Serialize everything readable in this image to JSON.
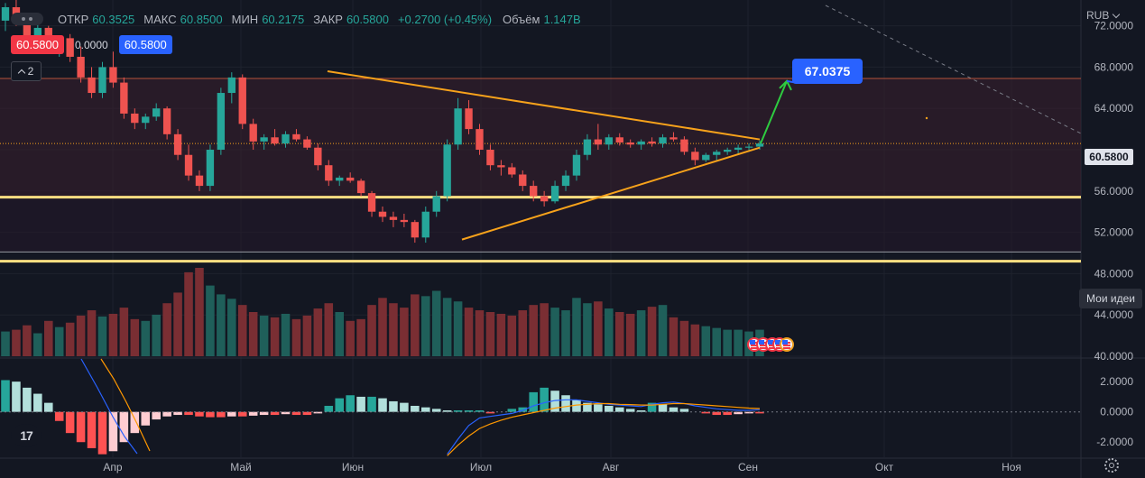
{
  "header": {
    "open_label": "ОТКР",
    "open_value": "60.3525",
    "high_label": "МАКС",
    "high_value": "60.8500",
    "low_label": "МИН",
    "low_value": "60.2175",
    "close_label": "ЗАКР",
    "close_value": "60.5800",
    "change": "+0.2700 (+0.45%)",
    "volume_label": "Объём",
    "volume_value": "1.147B"
  },
  "quote": {
    "sell": "60.5800",
    "spread": "0.0000",
    "buy": "60.5800"
  },
  "indicators_toggle": {
    "count": "2"
  },
  "currency": "RUB",
  "ideas_button": "Мои идеи",
  "target_label": "67.0375",
  "last_price_tag": "60.5800",
  "logo_text": "17",
  "colors": {
    "up": "#26a69a",
    "down": "#ef5350",
    "accent": "#2962ff",
    "triangle": "#f7a21b",
    "level_line": "#ffe082",
    "arrow": "#2ecc40"
  },
  "icons": {
    "logo": "tradingview-logo-icon",
    "settings": "gear-icon",
    "events": "us-flag-event-icon"
  },
  "chart_data": {
    "type": "candlestick",
    "price_axis_ticks": [
      "72.0000",
      "68.0000",
      "64.0000",
      "60.0000",
      "56.0000",
      "52.0000",
      "48.0000",
      "44.0000",
      "40.0000"
    ],
    "macd_axis_ticks": [
      "2.0000",
      "0.0000",
      "-2.0000"
    ],
    "time_axis_ticks": [
      "Апр",
      "Май",
      "Июн",
      "Июл",
      "Авг",
      "Сен",
      "Окт",
      "Ноя"
    ],
    "price_range": [
      40,
      74.5
    ],
    "macd_range": [
      -3,
      3.5
    ],
    "levels": [
      {
        "price": 66.9,
        "style": "zone-top"
      },
      {
        "price": 55.4,
        "style": "horizontal-line"
      },
      {
        "price": 50.1,
        "style": "zone-bottom"
      },
      {
        "price": 49.2,
        "style": "horizontal-line"
      }
    ],
    "triangle": {
      "upper": [
        [
          0.125,
          67.6
        ],
        [
          0.52,
          61.0
        ]
      ],
      "lower": [
        [
          0.13,
          51.3
        ],
        [
          0.52,
          60.2
        ]
      ]
    },
    "target": {
      "start": [
        0.52,
        60.6
      ],
      "end": [
        0.54,
        67.0
      ]
    },
    "candles": [
      [
        72.5,
        74.2,
        71.5,
        73.8
      ],
      [
        73.8,
        74.5,
        72.0,
        72.3
      ],
      [
        72.3,
        73.0,
        70.5,
        71.0
      ],
      [
        71.0,
        72.2,
        70.0,
        71.8
      ],
      [
        71.8,
        72.0,
        69.8,
        70.2
      ],
      [
        70.2,
        71.0,
        69.0,
        70.8
      ],
      [
        70.8,
        71.2,
        68.5,
        69.0
      ],
      [
        69.0,
        70.0,
        66.5,
        67.0
      ],
      [
        67.0,
        68.0,
        65.0,
        65.5
      ],
      [
        65.5,
        68.5,
        65.0,
        68.0
      ],
      [
        68.0,
        69.5,
        66.0,
        66.5
      ],
      [
        66.5,
        67.0,
        63.0,
        63.5
      ],
      [
        63.5,
        64.0,
        62.0,
        62.6
      ],
      [
        62.6,
        63.5,
        62.0,
        63.2
      ],
      [
        63.2,
        64.5,
        62.8,
        64.0
      ],
      [
        64.0,
        64.2,
        61.0,
        61.5
      ],
      [
        61.5,
        62.0,
        59.0,
        59.5
      ],
      [
        59.5,
        60.5,
        57.0,
        57.5
      ],
      [
        57.5,
        58.0,
        56.0,
        56.5
      ],
      [
        56.5,
        60.5,
        56.0,
        60.0
      ],
      [
        60.0,
        66.0,
        59.5,
        65.5
      ],
      [
        65.5,
        67.5,
        64.5,
        67.0
      ],
      [
        67.0,
        67.3,
        62.0,
        62.5
      ],
      [
        62.5,
        63.0,
        60.0,
        60.8
      ],
      [
        60.8,
        61.5,
        60.0,
        61.2
      ],
      [
        61.2,
        62.0,
        60.4,
        60.6
      ],
      [
        60.6,
        61.8,
        60.2,
        61.5
      ],
      [
        61.5,
        62.0,
        60.8,
        61.0
      ],
      [
        61.0,
        61.3,
        60.0,
        60.2
      ],
      [
        60.2,
        60.6,
        58.0,
        58.5
      ],
      [
        58.5,
        59.0,
        56.5,
        57.0
      ],
      [
        57.0,
        57.5,
        56.5,
        57.3
      ],
      [
        57.3,
        57.8,
        56.8,
        57.0
      ],
      [
        57.0,
        57.2,
        55.5,
        55.8
      ],
      [
        55.8,
        56.0,
        53.5,
        54.0
      ],
      [
        54.0,
        54.5,
        53.0,
        53.5
      ],
      [
        53.5,
        54.0,
        52.5,
        53.2
      ],
      [
        53.2,
        53.8,
        52.5,
        53.0
      ],
      [
        53.0,
        53.2,
        51.0,
        51.5
      ],
      [
        51.5,
        54.5,
        51.0,
        54.0
      ],
      [
        54.0,
        56.0,
        53.5,
        55.5
      ],
      [
        55.5,
        61.0,
        55.0,
        60.5
      ],
      [
        60.5,
        65.0,
        60.0,
        64.0
      ],
      [
        64.0,
        64.8,
        61.5,
        62.0
      ],
      [
        62.0,
        62.5,
        59.5,
        60.0
      ],
      [
        60.0,
        60.5,
        58.0,
        58.5
      ],
      [
        58.5,
        59.0,
        57.5,
        58.3
      ],
      [
        58.3,
        58.7,
        57.3,
        57.6
      ],
      [
        57.6,
        58.0,
        56.0,
        56.5
      ],
      [
        56.5,
        57.0,
        55.0,
        55.5
      ],
      [
        55.5,
        56.0,
        54.5,
        55.0
      ],
      [
        55.0,
        57.0,
        54.8,
        56.5
      ],
      [
        56.5,
        58.0,
        56.0,
        57.5
      ],
      [
        57.5,
        60.0,
        57.0,
        59.5
      ],
      [
        59.5,
        61.5,
        59.0,
        61.0
      ],
      [
        61.0,
        62.5,
        60.0,
        60.5
      ],
      [
        60.5,
        61.5,
        60.0,
        61.2
      ],
      [
        61.2,
        61.6,
        60.4,
        60.7
      ],
      [
        60.7,
        61.0,
        60.2,
        60.5
      ],
      [
        60.5,
        61.0,
        60.0,
        60.8
      ],
      [
        60.8,
        61.2,
        60.3,
        60.6
      ],
      [
        60.6,
        61.5,
        60.2,
        61.2
      ],
      [
        61.2,
        61.7,
        60.8,
        61.0
      ],
      [
        61.0,
        61.3,
        59.5,
        59.8
      ],
      [
        59.8,
        60.2,
        58.5,
        59.0
      ],
      [
        59.0,
        59.7,
        58.8,
        59.5
      ],
      [
        59.5,
        60.0,
        59.0,
        59.8
      ],
      [
        59.8,
        60.2,
        59.5,
        60.0
      ],
      [
        60.0,
        60.5,
        59.6,
        60.2
      ],
      [
        60.2,
        60.6,
        59.8,
        60.3
      ],
      [
        60.3,
        60.9,
        60.0,
        60.6
      ]
    ],
    "volumes": [
      0.28,
      0.3,
      0.35,
      0.26,
      0.4,
      0.33,
      0.38,
      0.46,
      0.52,
      0.45,
      0.48,
      0.55,
      0.42,
      0.4,
      0.47,
      0.6,
      0.72,
      0.95,
      1.0,
      0.8,
      0.7,
      0.65,
      0.58,
      0.5,
      0.46,
      0.44,
      0.48,
      0.42,
      0.46,
      0.54,
      0.6,
      0.5,
      0.4,
      0.42,
      0.58,
      0.66,
      0.6,
      0.55,
      0.7,
      0.68,
      0.74,
      0.66,
      0.62,
      0.55,
      0.52,
      0.5,
      0.48,
      0.46,
      0.52,
      0.58,
      0.6,
      0.55,
      0.52,
      0.66,
      0.6,
      0.62,
      0.54,
      0.5,
      0.48,
      0.52,
      0.56,
      0.58,
      0.44,
      0.4,
      0.36,
      0.34,
      0.32,
      0.3,
      0.3,
      0.28,
      0.3
    ],
    "macd_hist": [
      2.1,
      2.0,
      1.6,
      1.2,
      0.6,
      -0.6,
      -1.4,
      -2.0,
      -2.4,
      -2.8,
      -2.6,
      -2.0,
      -1.4,
      -0.9,
      -0.5,
      -0.3,
      -0.2,
      -0.2,
      -0.3,
      -0.35,
      -0.35,
      -0.3,
      -0.3,
      -0.25,
      -0.2,
      -0.2,
      -0.15,
      -0.2,
      -0.2,
      -0.1,
      0.4,
      0.9,
      1.1,
      1.0,
      1.0,
      0.9,
      0.7,
      0.6,
      0.4,
      0.3,
      0.2,
      0.1,
      0.1,
      0.1,
      0.1,
      -0.1,
      0.0,
      0.2,
      0.3,
      1.3,
      1.6,
      1.4,
      1.1,
      0.8,
      0.6,
      0.5,
      0.4,
      0.3,
      0.2,
      0.1,
      0.6,
      0.5,
      0.3,
      0.2,
      0.0,
      -0.1,
      -0.2,
      -0.2,
      -0.15,
      -0.1,
      -0.1
    ],
    "macd_line": [
      null,
      null,
      null,
      null,
      null,
      null,
      null,
      null,
      null,
      null,
      null,
      null,
      null,
      null,
      null,
      null,
      null,
      null,
      null,
      null,
      null,
      null,
      null,
      null,
      null,
      null,
      null,
      null,
      null,
      null,
      null,
      null,
      null,
      null,
      null,
      null,
      null,
      null,
      null,
      null,
      null,
      -2.8,
      -1.8,
      -0.9,
      -0.4,
      -0.3,
      -0.2,
      -0.1,
      0.1,
      0.4,
      0.6,
      0.75,
      0.8,
      0.8,
      0.7,
      0.6,
      0.5,
      0.45,
      0.4,
      0.35,
      0.5,
      0.6,
      0.65,
      0.55,
      0.4,
      0.3,
      0.2,
      0.15,
      0.1,
      0.1,
      0.15
    ],
    "signal_line": [
      null,
      null,
      null,
      null,
      null,
      null,
      null,
      null,
      null,
      null,
      null,
      null,
      null,
      null,
      null,
      null,
      null,
      null,
      null,
      null,
      null,
      null,
      null,
      null,
      null,
      null,
      null,
      null,
      null,
      null,
      null,
      null,
      null,
      null,
      null,
      null,
      null,
      null,
      null,
      null,
      null,
      -2.9,
      -2.2,
      -1.6,
      -1.1,
      -0.8,
      -0.55,
      -0.35,
      -0.2,
      -0.05,
      0.1,
      0.25,
      0.35,
      0.45,
      0.5,
      0.55,
      0.55,
      0.5,
      0.48,
      0.45,
      0.45,
      0.5,
      0.55,
      0.55,
      0.5,
      0.45,
      0.4,
      0.35,
      0.3,
      0.25,
      0.22
    ]
  }
}
